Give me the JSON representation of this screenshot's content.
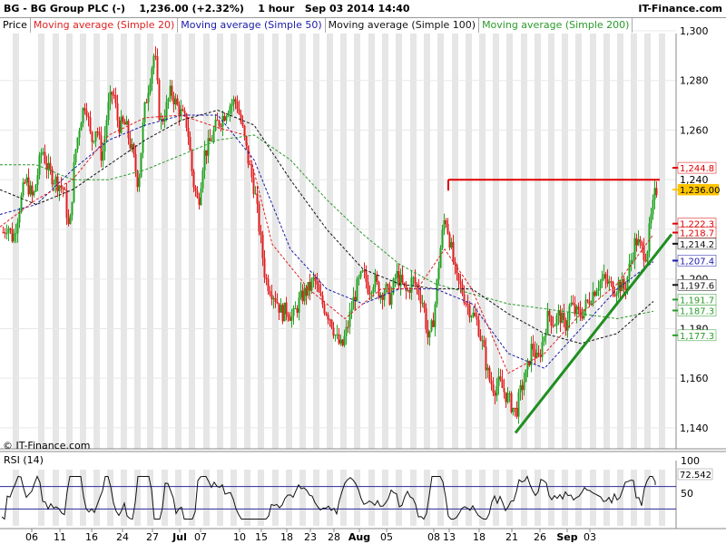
{
  "header": {
    "title": "BG - BG Group PLC (-)",
    "quote": "1,236.00 (+2.32%)",
    "interval": "1 hour",
    "timestamp": "Sep 03 2014 14:40",
    "source": "IT-Finance.com"
  },
  "legend": {
    "price": "Price",
    "ma20": "Moving average (Simple 20)",
    "ma50": "Moving average (Simple 50)",
    "ma100": "Moving average (Simple 100)",
    "ma200": "Moving average (Simple 200)"
  },
  "copyright": "© IT-Finance.com",
  "rsi_label": "RSI (14)",
  "colors": {
    "up": "#22a322",
    "down": "#e02020",
    "ma20": "#e02020",
    "ma50": "#1a1aa8",
    "ma100": "#111111",
    "ma200": "#2a9a2a",
    "resistance": "#e00000",
    "support": "#1f8f1f",
    "bands": "#e6e6e6"
  },
  "chart_data": {
    "type": "candlestick",
    "y_ticks": [
      "1,300",
      "1,280",
      "1,260",
      "1,240",
      "1,220",
      "1,200",
      "1,180",
      "1,160",
      "1,140"
    ],
    "ylim": [
      1130,
      1305
    ],
    "rsi_ticks": [
      "100",
      "50"
    ],
    "rsi_value": "72.542",
    "rsi_levels": [
      70,
      30
    ],
    "x_ticks": [
      "06",
      "11",
      "16",
      "24",
      "27",
      "Jul",
      "07",
      "10",
      "15",
      "18",
      "23",
      "28",
      "Aug",
      "05",
      "08",
      "13",
      "18",
      "21",
      "26",
      "Sep",
      "03"
    ],
    "price_path": [
      [
        0,
        1217
      ],
      [
        8,
        1222
      ],
      [
        14,
        1216
      ],
      [
        22,
        1231
      ],
      [
        28,
        1240
      ],
      [
        36,
        1232
      ],
      [
        46,
        1253
      ],
      [
        52,
        1244
      ],
      [
        60,
        1240
      ],
      [
        70,
        1236
      ],
      [
        76,
        1218
      ],
      [
        82,
        1250
      ],
      [
        88,
        1264
      ],
      [
        94,
        1272
      ],
      [
        100,
        1255
      ],
      [
        106,
        1262
      ],
      [
        112,
        1248
      ],
      [
        118,
        1268
      ],
      [
        124,
        1276
      ],
      [
        130,
        1262
      ],
      [
        138,
        1262
      ],
      [
        146,
        1250
      ],
      [
        152,
        1238
      ],
      [
        158,
        1266
      ],
      [
        164,
        1280
      ],
      [
        170,
        1292
      ],
      [
        176,
        1262
      ],
      [
        182,
        1268
      ],
      [
        188,
        1276
      ],
      [
        194,
        1270
      ],
      [
        200,
        1266
      ],
      [
        206,
        1262
      ],
      [
        212,
        1240
      ],
      [
        218,
        1230
      ],
      [
        224,
        1250
      ],
      [
        230,
        1254
      ],
      [
        238,
        1262
      ],
      [
        246,
        1266
      ],
      [
        252,
        1270
      ],
      [
        260,
        1272
      ],
      [
        268,
        1258
      ],
      [
        274,
        1246
      ],
      [
        280,
        1236
      ],
      [
        286,
        1218
      ],
      [
        292,
        1200
      ],
      [
        298,
        1196
      ],
      [
        304,
        1192
      ],
      [
        310,
        1186
      ],
      [
        316,
        1188
      ],
      [
        322,
        1184
      ],
      [
        328,
        1190
      ],
      [
        334,
        1194
      ],
      [
        340,
        1196
      ],
      [
        346,
        1200
      ],
      [
        352,
        1192
      ],
      [
        358,
        1188
      ],
      [
        364,
        1184
      ],
      [
        370,
        1176
      ],
      [
        376,
        1172
      ],
      [
        382,
        1180
      ],
      [
        388,
        1190
      ],
      [
        394,
        1198
      ],
      [
        400,
        1202
      ],
      [
        406,
        1196
      ],
      [
        412,
        1200
      ],
      [
        418,
        1194
      ],
      [
        424,
        1196
      ],
      [
        430,
        1192
      ],
      [
        436,
        1202
      ],
      [
        442,
        1198
      ],
      [
        448,
        1194
      ],
      [
        454,
        1200
      ],
      [
        460,
        1196
      ],
      [
        466,
        1190
      ],
      [
        472,
        1174
      ],
      [
        478,
        1186
      ],
      [
        484,
        1210
      ],
      [
        490,
        1226
      ],
      [
        496,
        1214
      ],
      [
        502,
        1200
      ],
      [
        508,
        1196
      ],
      [
        514,
        1190
      ],
      [
        520,
        1186
      ],
      [
        526,
        1182
      ],
      [
        532,
        1172
      ],
      [
        538,
        1160
      ],
      [
        544,
        1156
      ],
      [
        550,
        1158
      ],
      [
        556,
        1154
      ],
      [
        562,
        1150
      ],
      [
        568,
        1146
      ],
      [
        574,
        1156
      ],
      [
        580,
        1162
      ],
      [
        586,
        1174
      ],
      [
        592,
        1166
      ],
      [
        598,
        1176
      ],
      [
        604,
        1186
      ],
      [
        610,
        1182
      ],
      [
        616,
        1186
      ],
      [
        622,
        1180
      ],
      [
        628,
        1190
      ],
      [
        634,
        1186
      ],
      [
        640,
        1186
      ],
      [
        646,
        1190
      ],
      [
        652,
        1194
      ],
      [
        658,
        1198
      ],
      [
        664,
        1200
      ],
      [
        670,
        1198
      ],
      [
        676,
        1196
      ],
      [
        682,
        1198
      ],
      [
        688,
        1196
      ],
      [
        694,
        1206
      ],
      [
        700,
        1216
      ],
      [
        706,
        1212
      ],
      [
        712,
        1210
      ],
      [
        716,
        1222
      ],
      [
        722,
        1236
      ]
    ],
    "ma20_path": [
      [
        0,
        1221
      ],
      [
        40,
        1232
      ],
      [
        80,
        1240
      ],
      [
        120,
        1258
      ],
      [
        160,
        1265
      ],
      [
        200,
        1266
      ],
      [
        240,
        1261
      ],
      [
        270,
        1258
      ],
      [
        300,
        1214
      ],
      [
        340,
        1196
      ],
      [
        380,
        1184
      ],
      [
        420,
        1196
      ],
      [
        460,
        1196
      ],
      [
        490,
        1212
      ],
      [
        520,
        1196
      ],
      [
        560,
        1162
      ],
      [
        600,
        1170
      ],
      [
        640,
        1186
      ],
      [
        680,
        1198
      ],
      [
        720,
        1218
      ]
    ],
    "ma50_path": [
      [
        0,
        1226
      ],
      [
        40,
        1230
      ],
      [
        80,
        1244
      ],
      [
        120,
        1256
      ],
      [
        160,
        1262
      ],
      [
        200,
        1266
      ],
      [
        240,
        1266
      ],
      [
        280,
        1248
      ],
      [
        320,
        1212
      ],
      [
        360,
        1196
      ],
      [
        400,
        1190
      ],
      [
        440,
        1196
      ],
      [
        480,
        1196
      ],
      [
        520,
        1190
      ],
      [
        560,
        1170
      ],
      [
        600,
        1164
      ],
      [
        640,
        1180
      ],
      [
        680,
        1196
      ],
      [
        720,
        1207
      ]
    ],
    "ma100_path": [
      [
        0,
        1236
      ],
      [
        40,
        1230
      ],
      [
        80,
        1236
      ],
      [
        120,
        1246
      ],
      [
        160,
        1256
      ],
      [
        200,
        1264
      ],
      [
        240,
        1268
      ],
      [
        280,
        1262
      ],
      [
        320,
        1240
      ],
      [
        360,
        1220
      ],
      [
        400,
        1204
      ],
      [
        440,
        1198
      ],
      [
        480,
        1196
      ],
      [
        520,
        1196
      ],
      [
        560,
        1186
      ],
      [
        600,
        1178
      ],
      [
        640,
        1174
      ],
      [
        680,
        1178
      ],
      [
        720,
        1191
      ]
    ],
    "ma200_path": [
      [
        0,
        1246
      ],
      [
        40,
        1246
      ],
      [
        80,
        1240
      ],
      [
        120,
        1240
      ],
      [
        160,
        1244
      ],
      [
        200,
        1250
      ],
      [
        240,
        1256
      ],
      [
        280,
        1258
      ],
      [
        320,
        1248
      ],
      [
        360,
        1232
      ],
      [
        400,
        1218
      ],
      [
        440,
        1206
      ],
      [
        480,
        1198
      ],
      [
        520,
        1194
      ],
      [
        560,
        1190
      ],
      [
        600,
        1188
      ],
      [
        640,
        1186
      ],
      [
        680,
        1184
      ],
      [
        720,
        1187
      ]
    ],
    "resistance": {
      "x": [
        494,
        727
      ],
      "y": 1240
    },
    "support": {
      "x": [
        568,
        740
      ],
      "y": [
        1138,
        1218
      ]
    },
    "price_tags": [
      {
        "label": "1,244.8",
        "value": 1244.8,
        "color": "#e00000"
      },
      {
        "label": "1,236.00",
        "value": 1236.0,
        "color": "#ffc400"
      },
      {
        "label": "1,222.3",
        "value": 1222.3,
        "color": "#e00000"
      },
      {
        "label": "1,218.7",
        "value": 1218.7,
        "color": "#e00000"
      },
      {
        "label": "1,214.2",
        "value": 1214.2,
        "color": "#111111"
      },
      {
        "label": "1,207.4",
        "value": 1207.4,
        "color": "#1a1aa8"
      },
      {
        "label": "1,197.6",
        "value": 1197.6,
        "color": "#111111"
      },
      {
        "label": "1,191.7",
        "value": 1191.7,
        "color": "#2a9a2a"
      },
      {
        "label": "1,187.3",
        "value": 1187.3,
        "color": "#2a9a2a"
      },
      {
        "label": "1,177.3",
        "value": 1177.3,
        "color": "#2a9a2a"
      }
    ]
  }
}
